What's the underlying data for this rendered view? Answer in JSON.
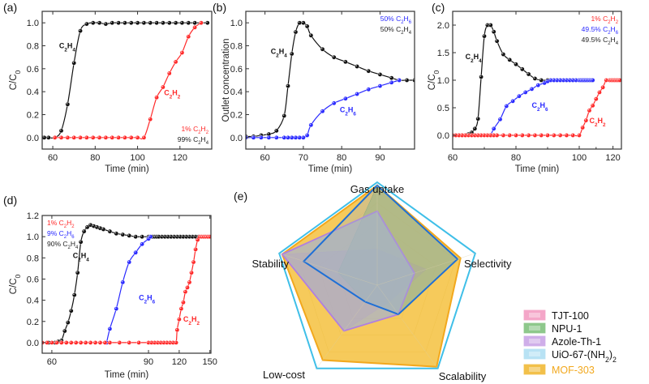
{
  "figure": {
    "panels": [
      "(a)",
      "(b)",
      "(c)",
      "(d)",
      "(e)"
    ]
  },
  "chart_data": [
    {
      "id": "a",
      "panel_label": "(a)",
      "type": "line",
      "xlabel": "Time (min)",
      "ylabel": "C/C0",
      "xlim": [
        55,
        135
      ],
      "ylim": [
        -0.1,
        1.1
      ],
      "xticks": [
        60,
        80,
        100,
        120
      ],
      "yticks": [
        0.0,
        0.2,
        0.4,
        0.6,
        0.8,
        1.0
      ],
      "ytick_labels": [
        "0.0",
        "0.2",
        "0.4",
        "0.6",
        "0.8",
        "1.0"
      ],
      "notes": [
        {
          "text": "1% C₂H₂",
          "color": "#ff2a2a"
        },
        {
          "text": "99% C₂H₄",
          "color": "#222222"
        }
      ],
      "series": [
        {
          "name": "C₂H₄",
          "color": "#111111",
          "x": [
            55,
            56,
            58,
            61,
            64,
            67,
            70,
            73,
            76,
            79,
            82,
            85,
            88,
            91,
            94,
            97,
            100,
            103,
            106,
            109,
            112,
            115,
            118,
            121,
            124,
            127,
            130,
            133
          ],
          "y": [
            0,
            0,
            0,
            0,
            0.06,
            0.29,
            0.65,
            0.93,
            0.99,
            1.0,
            1.0,
            0.99,
            1.0,
            1.0,
            1.0,
            1.0,
            1.0,
            1.0,
            1.0,
            1.0,
            1.0,
            1.0,
            1.0,
            1.0,
            1.0,
            1.0,
            1.0,
            1.0
          ],
          "label": {
            "text": "C₂H₄",
            "x": 63,
            "y": 0.78
          }
        },
        {
          "name": "C₂H₂",
          "color": "#ff2a2a",
          "x": [
            61,
            64,
            67,
            70,
            73,
            76,
            79,
            82,
            85,
            88,
            91,
            94,
            97,
            100,
            103,
            106,
            109,
            112,
            115,
            118,
            121,
            124,
            127,
            130
          ],
          "y": [
            0,
            0,
            0,
            0,
            0,
            0,
            0,
            0,
            0,
            0,
            0,
            0,
            0,
            0,
            0,
            0.16,
            0.35,
            0.44,
            0.56,
            0.66,
            0.74,
            0.88,
            0.96,
            1.0
          ],
          "label": {
            "text": "C₂H₂",
            "x": 112.5,
            "y": 0.37
          }
        }
      ]
    },
    {
      "id": "b",
      "panel_label": "(b)",
      "type": "line",
      "xlabel": "Time (min)",
      "ylabel": "Outlet concentration",
      "xlim": [
        55,
        99
      ],
      "ylim": [
        -0.1,
        1.1
      ],
      "xticks": [
        60,
        70,
        80,
        90
      ],
      "yticks": [
        0.0,
        0.2,
        0.4,
        0.6,
        0.8,
        1.0
      ],
      "ytick_labels": [
        "0.0",
        "0.2",
        "0.4",
        "0.6",
        "0.8",
        "1.0"
      ],
      "notes": [
        {
          "text": "50% C₂H₆",
          "color": "#2a2aff"
        },
        {
          "text": "50% C₂H₄",
          "color": "#222222"
        }
      ],
      "series": [
        {
          "name": "C₂H₄",
          "color": "#111111",
          "x": [
            55,
            57,
            59,
            61,
            63,
            65,
            66,
            67,
            68,
            69,
            70,
            71,
            72,
            75,
            78,
            81,
            84,
            87,
            90,
            93,
            95,
            97,
            99
          ],
          "y": [
            0.01,
            0.01,
            0.02,
            0.03,
            0.06,
            0.19,
            0.45,
            0.73,
            0.92,
            1.0,
            1.0,
            0.97,
            0.89,
            0.77,
            0.7,
            0.66,
            0.62,
            0.58,
            0.55,
            0.52,
            0.5,
            0.5,
            0.5
          ],
          "label": {
            "text": "C₂H₄",
            "x": 61.5,
            "y": 0.73
          }
        },
        {
          "name": "C₂H₆",
          "color": "#2a2aff",
          "x": [
            55,
            57,
            59,
            61,
            63,
            65,
            66,
            67,
            68,
            69,
            70,
            71,
            72,
            75,
            78,
            81,
            84,
            87,
            90,
            93,
            95
          ],
          "y": [
            0,
            0,
            0,
            0,
            0,
            0,
            0,
            0,
            0,
            0,
            0,
            0.02,
            0.11,
            0.23,
            0.3,
            0.34,
            0.38,
            0.42,
            0.45,
            0.48,
            0.5
          ],
          "label": {
            "text": "C₂H₆",
            "x": 79.5,
            "y": 0.22
          }
        }
      ]
    },
    {
      "id": "c",
      "panel_label": "(c)",
      "type": "line",
      "xlabel": "Time (min)",
      "ylabel": "C/C0",
      "xlim": [
        60,
        125
      ],
      "ylim": [
        -0.25,
        2.25
      ],
      "xticks": [
        60,
        80,
        100,
        120
      ],
      "xticks_minor": [
        70,
        90,
        110
      ],
      "yticks": [
        0.0,
        0.5,
        1.0,
        1.5,
        2.0
      ],
      "ytick_labels": [
        "0.0",
        "0.5",
        "1.0",
        "1.5",
        "2.0"
      ],
      "notes": [
        {
          "text": "1% C₂H₂",
          "color": "#ff2a2a"
        },
        {
          "text": "49.5% C₂H₆",
          "color": "#2a2aff"
        },
        {
          "text": "49.5% C₂H₄",
          "color": "#222222"
        }
      ],
      "series": [
        {
          "name": "C₂H₄",
          "color": "#111111",
          "x": [
            60,
            61,
            62,
            63,
            64,
            65,
            66,
            67,
            68,
            69,
            70,
            71,
            72,
            73,
            74,
            76,
            78,
            80,
            82,
            84,
            86,
            88,
            90,
            92,
            93,
            94,
            95,
            96,
            97,
            98,
            99,
            100,
            101,
            102,
            103,
            104,
            105,
            106,
            107,
            108
          ],
          "y": [
            0,
            0,
            0,
            0,
            0,
            0.02,
            0.05,
            0.12,
            0.3,
            1.06,
            1.8,
            2.0,
            2.0,
            1.88,
            1.71,
            1.47,
            1.37,
            1.29,
            1.2,
            1.11,
            1.03,
            1.0,
            1.0,
            1.0,
            1.0,
            1.0,
            1.0,
            1.0,
            1.0,
            1.0,
            1.0,
            1.0,
            1.0,
            1.0,
            1.0,
            1.0,
            1.0,
            1.0,
            1.0,
            1.0
          ],
          "label": {
            "text": "C₂H₄",
            "x": 64,
            "y": 1.38
          }
        },
        {
          "name": "C₂H₆",
          "color": "#2a2aff",
          "x": [
            72,
            73,
            75,
            77,
            79,
            81,
            83,
            85,
            87,
            89,
            90,
            91,
            92,
            93,
            94,
            95,
            96,
            97,
            98,
            99,
            100,
            101,
            102,
            103,
            104,
            105,
            106,
            107,
            108
          ],
          "y": [
            0,
            0.12,
            0.29,
            0.53,
            0.62,
            0.71,
            0.78,
            0.84,
            0.91,
            0.95,
            0.98,
            1.0,
            1.0,
            1.0,
            1.0,
            1.0,
            1.0,
            1.0,
            1.0,
            1.0,
            1.0,
            1.0,
            1.0,
            1.0,
            1.0,
            1.0,
            1.0,
            1.0,
            1.0
          ],
          "label": {
            "text": "C₂H₆",
            "x": 85,
            "y": 0.5
          }
        },
        {
          "name": "C₂H₂",
          "color": "#ff2a2a",
          "x": [
            60,
            61,
            62,
            63,
            64,
            65,
            66,
            67,
            68,
            69,
            70,
            71,
            72,
            73,
            74,
            76,
            78,
            80,
            82,
            84,
            86,
            88,
            90,
            92,
            94,
            96,
            98,
            100,
            102,
            104,
            106,
            108,
            110,
            112,
            114,
            116,
            118,
            119,
            120,
            121,
            122,
            123,
            124
          ],
          "y": [
            0,
            0,
            0,
            0,
            0,
            0,
            0,
            0,
            0,
            0,
            0,
            0,
            0,
            0,
            0,
            0,
            0,
            0,
            0,
            0,
            0,
            0,
            0,
            0,
            0,
            0,
            0,
            0,
            0.14,
            0.27,
            0.45,
            0.54,
            0.66,
            0.78,
            0.87,
            1.0,
            1.0,
            1.0,
            1.0,
            1.0,
            1.0,
            1.0,
            1.0
          ],
          "label": {
            "text": "C₂H₂",
            "x": 106,
            "y": 0.22
          }
        }
      ],
      "axis_break_note": "x axis compressed beyond 100 min"
    },
    {
      "id": "d",
      "panel_label": "(d)",
      "type": "line",
      "xlabel": "Time (min)",
      "ylabel": "C/C0",
      "xlim": [
        57,
        151
      ],
      "ylim": [
        -0.1,
        1.2
      ],
      "xticks": [
        60,
        90,
        120,
        150
      ],
      "yticks": [
        0.0,
        0.2,
        0.4,
        0.6,
        0.8,
        1.0,
        1.2
      ],
      "ytick_labels": [
        "0.0",
        "0.2",
        "0.4",
        "0.6",
        "0.8",
        "1.0",
        "1.2"
      ],
      "notes": [
        {
          "text": "1%  C₂H₂",
          "color": "#ff2a2a"
        },
        {
          "text": "9%  C₂H₆",
          "color": "#2a2aff"
        },
        {
          "text": "90% C₂H₄",
          "color": "#222222"
        }
      ],
      "series": [
        {
          "name": "C₂H₄",
          "color": "#111111",
          "x": [
            57,
            59,
            61,
            62,
            63,
            64,
            65,
            66,
            67,
            68,
            69,
            70,
            71,
            72,
            73,
            74,
            75,
            76,
            78,
            80,
            82,
            84,
            86,
            88,
            90,
            92,
            94,
            96,
            98,
            100,
            103,
            106,
            109,
            112,
            115,
            118,
            121,
            124,
            127,
            130,
            133,
            136,
            139,
            142,
            145,
            148,
            150
          ],
          "y": [
            0,
            0,
            0,
            0.01,
            0.02,
            0.11,
            0.19,
            0.3,
            0.45,
            0.66,
            0.95,
            1.05,
            1.09,
            1.11,
            1.1,
            1.09,
            1.08,
            1.07,
            1.05,
            1.03,
            1.02,
            1.01,
            1.0,
            1.0,
            1.0,
            1.0,
            1.0,
            1.0,
            1.0,
            1.0,
            1.0,
            1.0,
            1.0,
            1.0,
            1.0,
            1.0,
            1.0,
            1.0,
            1.0,
            1.0,
            1.0,
            1.0,
            1.0,
            1.0,
            1.0,
            1.0,
            1.0
          ],
          "label": {
            "text": "C₂H₄",
            "x": 66.5,
            "y": 0.8
          }
        },
        {
          "name": "C₂H₆",
          "color": "#2a2aff",
          "x": [
            77,
            78,
            80,
            82,
            84,
            86,
            88,
            90,
            92
          ],
          "y": [
            0,
            0.13,
            0.32,
            0.57,
            0.76,
            0.85,
            0.93,
            0.98,
            1.0
          ],
          "label": {
            "text": "C₂H₆",
            "x": 87,
            "y": 0.4
          }
        },
        {
          "name": "C₂H₂",
          "color": "#ff2a2a",
          "x": [
            57,
            58.5,
            60,
            61.5,
            63,
            64.5,
            66,
            67.5,
            69,
            70.5,
            72,
            73.5,
            75,
            76.5,
            78,
            81,
            84,
            87,
            90,
            93,
            96,
            99,
            102,
            105,
            108,
            111,
            114,
            117,
            118,
            120,
            122,
            124,
            126,
            128,
            130,
            132,
            134,
            136,
            138,
            140,
            142,
            144,
            146,
            148,
            150
          ],
          "y": [
            0,
            0,
            0,
            0,
            0,
            0,
            0,
            0,
            0,
            0,
            0,
            0,
            0,
            0,
            0,
            0,
            0,
            0,
            0,
            0,
            0,
            0,
            0,
            0,
            0,
            0,
            0,
            0,
            0.12,
            0.22,
            0.32,
            0.38,
            0.48,
            0.52,
            0.57,
            0.66,
            0.76,
            0.88,
            0.97,
            1.0,
            1.0,
            1.0,
            1.0,
            1.0,
            1.0
          ],
          "label": {
            "text": "C₂H₂",
            "x": 124,
            "y": 0.2
          }
        }
      ],
      "axis_break_note": "x axis compressed beyond 90 min"
    },
    {
      "id": "e",
      "panel_label": "(e)",
      "type": "radar",
      "axes": [
        "Gas uptake",
        "Selectivity",
        "Scalability",
        "Low-cost",
        "Stability"
      ],
      "range": [
        0,
        1
      ],
      "grid_levels": [
        0.2,
        0.4,
        0.6,
        0.8,
        1.0
      ],
      "series": [
        {
          "name": "TJT-100",
          "color": "#e987b3",
          "values": [
            0.35,
            0.5,
            0.2,
            0.55,
            0.97
          ]
        },
        {
          "name": "NPU-1",
          "color": "#6fae6a",
          "values": [
            0.97,
            0.82,
            0.35,
            0.2,
            0.4
          ]
        },
        {
          "name": "Azole-Th-1",
          "color": "#b07fe0",
          "values": [
            0.72,
            0.38,
            0.35,
            0.55,
            0.97
          ]
        },
        {
          "name": "UiO-67-(NH₂)₂",
          "color": "#3fbfe8",
          "values": [
            1.0,
            1.0,
            1.0,
            1.0,
            1.0
          ]
        },
        {
          "name": "MOF-303",
          "color": "#f2a81d",
          "values": [
            0.97,
            0.85,
            0.98,
            0.9,
            0.97
          ]
        },
        {
          "name": "blue-outline",
          "color": "#1e6fd6",
          "values": [
            0.97,
            0.82,
            0.35,
            0.2,
            0.75
          ]
        }
      ],
      "legend": {
        "placement": "bottom-right",
        "items": [
          {
            "label": "TJT-100",
            "color": "#f4a6c8",
            "text_color": "#111111"
          },
          {
            "label": "NPU-1",
            "color": "#8ec88c",
            "text_color": "#111111"
          },
          {
            "label": "Azole-Th-1",
            "color": "#cfaee9",
            "text_color": "#111111"
          },
          {
            "label": "UiO-67-(NH₂)₂",
            "color": "#b8e2f4",
            "text_color": "#111111"
          },
          {
            "label": "MOF-303",
            "color": "#f2c04a",
            "text_color": "#f2a81d"
          }
        ]
      }
    }
  ]
}
